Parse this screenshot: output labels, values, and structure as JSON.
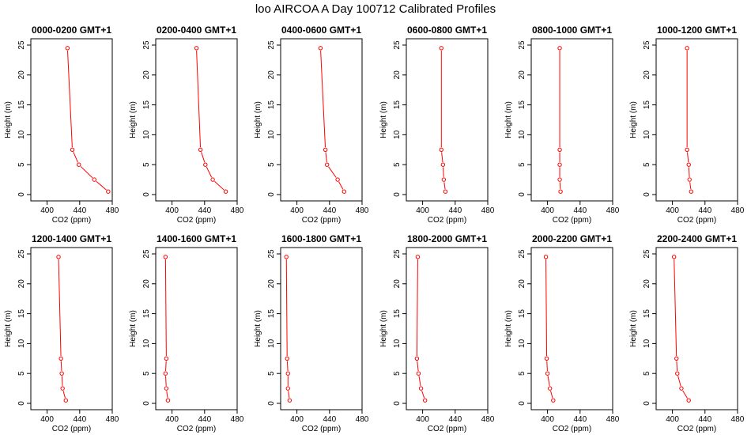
{
  "figure": {
    "title": "loo AIRCOA A  Day 100712  Calibrated Profiles"
  },
  "chart_data": [
    {
      "type": "line",
      "title": "0000-0200 GMT+1",
      "xlabel": "CO2 (ppm)",
      "ylabel": "Height (m)",
      "xlim": [
        380,
        480
      ],
      "ylim": [
        0,
        25
      ],
      "x_ticks": [
        400,
        440,
        480
      ],
      "y_ticks": [
        0,
        5,
        10,
        15,
        20,
        25
      ],
      "color": "#ff0000",
      "marker": "open-circle",
      "points": [
        {
          "x": 475,
          "y": 0.5
        },
        {
          "x": 458,
          "y": 2.5
        },
        {
          "x": 439,
          "y": 5
        },
        {
          "x": 431,
          "y": 7.5
        },
        {
          "x": 425,
          "y": 24.5
        }
      ]
    },
    {
      "type": "line",
      "title": "0200-0400 GMT+1",
      "xlabel": "CO2 (ppm)",
      "ylabel": "Height (m)",
      "xlim": [
        380,
        480
      ],
      "ylim": [
        0,
        25
      ],
      "x_ticks": [
        400,
        440,
        480
      ],
      "y_ticks": [
        0,
        5,
        10,
        15,
        20,
        25
      ],
      "color": "#ff0000",
      "marker": "open-circle",
      "points": [
        {
          "x": 466,
          "y": 0.5
        },
        {
          "x": 450,
          "y": 2.5
        },
        {
          "x": 441,
          "y": 5
        },
        {
          "x": 435,
          "y": 7.5
        },
        {
          "x": 430,
          "y": 24.5
        }
      ]
    },
    {
      "type": "line",
      "title": "0400-0600 GMT+1",
      "xlabel": "CO2 (ppm)",
      "ylabel": "Height (m)",
      "xlim": [
        380,
        480
      ],
      "ylim": [
        0,
        25
      ],
      "x_ticks": [
        400,
        440,
        480
      ],
      "y_ticks": [
        0,
        5,
        10,
        15,
        20,
        25
      ],
      "color": "#ff0000",
      "marker": "open-circle",
      "points": [
        {
          "x": 458,
          "y": 0.5
        },
        {
          "x": 450,
          "y": 2.5
        },
        {
          "x": 437,
          "y": 5
        },
        {
          "x": 435,
          "y": 7.5
        },
        {
          "x": 429,
          "y": 24.5
        }
      ]
    },
    {
      "type": "line",
      "title": "0600-0800 GMT+1",
      "xlabel": "CO2 (ppm)",
      "ylabel": "Height (m)",
      "xlim": [
        380,
        480
      ],
      "ylim": [
        0,
        25
      ],
      "x_ticks": [
        400,
        440,
        480
      ],
      "y_ticks": [
        0,
        5,
        10,
        15,
        20,
        25
      ],
      "color": "#ff0000",
      "marker": "open-circle",
      "points": [
        {
          "x": 428,
          "y": 0.5
        },
        {
          "x": 426,
          "y": 2.5
        },
        {
          "x": 425,
          "y": 5
        },
        {
          "x": 423,
          "y": 7.5
        },
        {
          "x": 423,
          "y": 24.5
        }
      ]
    },
    {
      "type": "line",
      "title": "0800-1000 GMT+1",
      "xlabel": "CO2 (ppm)",
      "ylabel": "Height (m)",
      "xlim": [
        380,
        480
      ],
      "ylim": [
        0,
        25
      ],
      "x_ticks": [
        400,
        440,
        480
      ],
      "y_ticks": [
        0,
        5,
        10,
        15,
        20,
        25
      ],
      "color": "#ff0000",
      "marker": "open-circle",
      "points": [
        {
          "x": 416,
          "y": 0.5
        },
        {
          "x": 415,
          "y": 2.5
        },
        {
          "x": 415,
          "y": 5
        },
        {
          "x": 415,
          "y": 7.5
        },
        {
          "x": 415,
          "y": 24.5
        }
      ]
    },
    {
      "type": "line",
      "title": "1000-1200 GMT+1",
      "xlabel": "CO2 (ppm)",
      "ylabel": "Height (m)",
      "xlim": [
        380,
        480
      ],
      "ylim": [
        0,
        25
      ],
      "x_ticks": [
        400,
        440,
        480
      ],
      "y_ticks": [
        0,
        5,
        10,
        15,
        20,
        25
      ],
      "color": "#ff0000",
      "marker": "open-circle",
      "points": [
        {
          "x": 423,
          "y": 0.5
        },
        {
          "x": 421,
          "y": 2.5
        },
        {
          "x": 420,
          "y": 5
        },
        {
          "x": 418,
          "y": 7.5
        },
        {
          "x": 418,
          "y": 24.5
        }
      ]
    },
    {
      "type": "line",
      "title": "1200-1400 GMT+1",
      "xlabel": "CO2 (ppm)",
      "ylabel": "Height (m)",
      "xlim": [
        380,
        480
      ],
      "ylim": [
        0,
        25
      ],
      "x_ticks": [
        400,
        440,
        480
      ],
      "y_ticks": [
        0,
        5,
        10,
        15,
        20,
        25
      ],
      "color": "#ff0000",
      "marker": "open-circle",
      "points": [
        {
          "x": 423,
          "y": 0.5
        },
        {
          "x": 419,
          "y": 2.5
        },
        {
          "x": 418,
          "y": 5
        },
        {
          "x": 417,
          "y": 7.5
        },
        {
          "x": 414,
          "y": 24.5
        }
      ]
    },
    {
      "type": "line",
      "title": "1400-1600 GMT+1",
      "xlabel": "CO2 (ppm)",
      "ylabel": "Height (m)",
      "xlim": [
        380,
        480
      ],
      "ylim": [
        0,
        25
      ],
      "x_ticks": [
        400,
        440,
        480
      ],
      "y_ticks": [
        0,
        5,
        10,
        15,
        20,
        25
      ],
      "color": "#ff0000",
      "marker": "open-circle",
      "points": [
        {
          "x": 395,
          "y": 0.5
        },
        {
          "x": 393,
          "y": 2.5
        },
        {
          "x": 392,
          "y": 5
        },
        {
          "x": 393,
          "y": 7.5
        },
        {
          "x": 392,
          "y": 24.5
        }
      ]
    },
    {
      "type": "line",
      "title": "1600-1800 GMT+1",
      "xlabel": "CO2 (ppm)",
      "ylabel": "Height (m)",
      "xlim": [
        380,
        480
      ],
      "ylim": [
        0,
        25
      ],
      "x_ticks": [
        400,
        440,
        480
      ],
      "y_ticks": [
        0,
        5,
        10,
        15,
        20,
        25
      ],
      "color": "#ff0000",
      "marker": "open-circle",
      "points": [
        {
          "x": 391,
          "y": 0.5
        },
        {
          "x": 389,
          "y": 2.5
        },
        {
          "x": 389,
          "y": 5
        },
        {
          "x": 388,
          "y": 7.5
        },
        {
          "x": 387,
          "y": 24.5
        }
      ]
    },
    {
      "type": "line",
      "title": "1800-2000 GMT+1",
      "xlabel": "CO2 (ppm)",
      "ylabel": "Height (m)",
      "xlim": [
        380,
        480
      ],
      "ylim": [
        0,
        25
      ],
      "x_ticks": [
        400,
        440,
        480
      ],
      "y_ticks": [
        0,
        5,
        10,
        15,
        20,
        25
      ],
      "color": "#ff0000",
      "marker": "open-circle",
      "points": [
        {
          "x": 403,
          "y": 0.5
        },
        {
          "x": 398,
          "y": 2.5
        },
        {
          "x": 395,
          "y": 5
        },
        {
          "x": 393,
          "y": 7.5
        },
        {
          "x": 394,
          "y": 24.5
        }
      ]
    },
    {
      "type": "line",
      "title": "2000-2200 GMT+1",
      "xlabel": "CO2 (ppm)",
      "ylabel": "Height (m)",
      "xlim": [
        380,
        480
      ],
      "ylim": [
        0,
        25
      ],
      "x_ticks": [
        400,
        440,
        480
      ],
      "y_ticks": [
        0,
        5,
        10,
        15,
        20,
        25
      ],
      "color": "#ff0000",
      "marker": "open-circle",
      "points": [
        {
          "x": 407,
          "y": 0.5
        },
        {
          "x": 403,
          "y": 2.5
        },
        {
          "x": 400,
          "y": 5
        },
        {
          "x": 399,
          "y": 7.5
        },
        {
          "x": 398,
          "y": 24.5
        }
      ]
    },
    {
      "type": "line",
      "title": "2200-2400 GMT+1",
      "xlabel": "CO2 (ppm)",
      "ylabel": "Height (m)",
      "xlim": [
        380,
        480
      ],
      "ylim": [
        0,
        25
      ],
      "x_ticks": [
        400,
        440,
        480
      ],
      "y_ticks": [
        0,
        5,
        10,
        15,
        20,
        25
      ],
      "color": "#ff0000",
      "marker": "open-circle",
      "points": [
        {
          "x": 420,
          "y": 0.5
        },
        {
          "x": 411,
          "y": 2.5
        },
        {
          "x": 406,
          "y": 5
        },
        {
          "x": 405,
          "y": 7.5
        },
        {
          "x": 402,
          "y": 24.5
        }
      ]
    }
  ]
}
